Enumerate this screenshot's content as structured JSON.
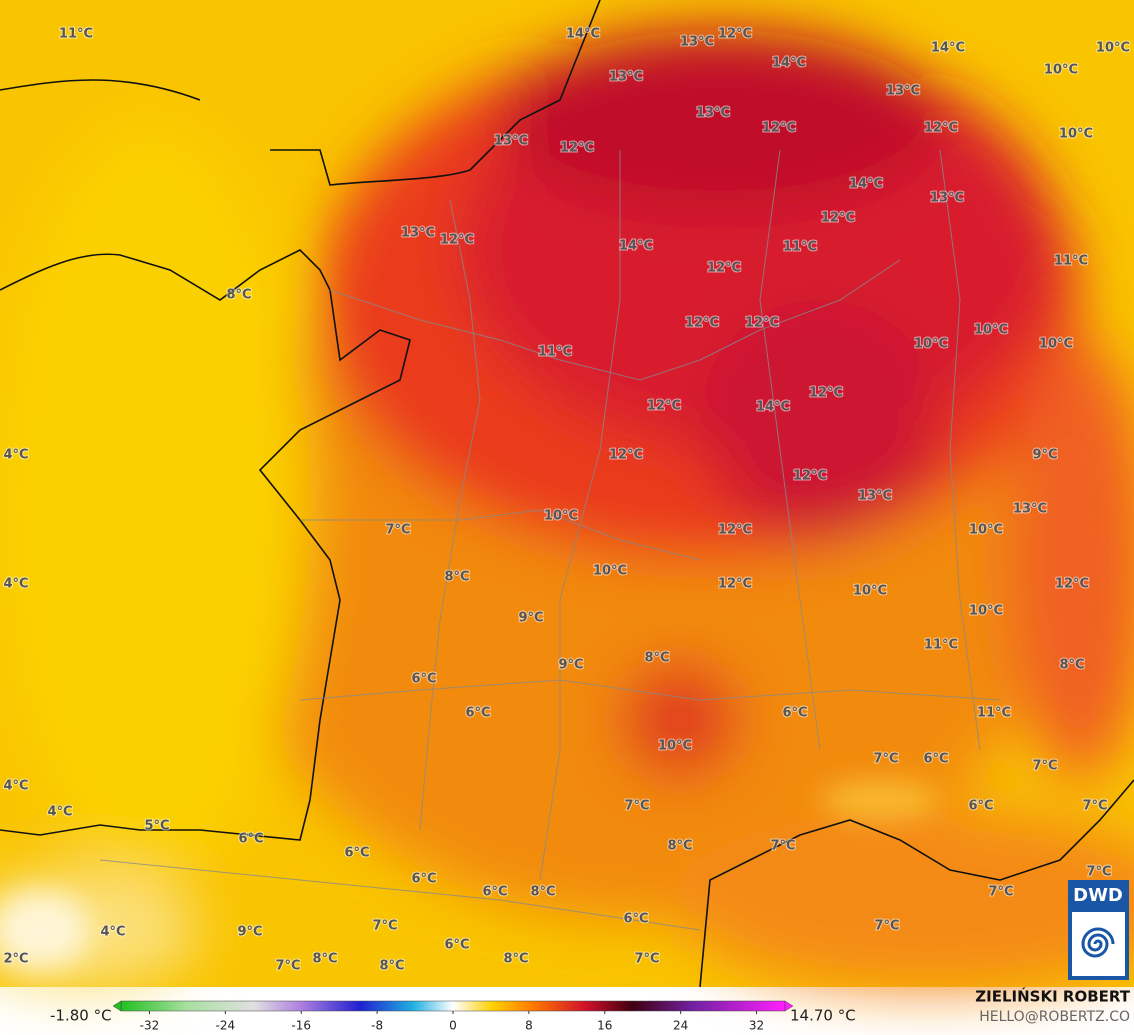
{
  "map": {
    "labels": [
      "11°C",
      "14°C",
      "13°C",
      "12°C",
      "14°C",
      "10°C",
      "13°C",
      "14°C",
      "10°C",
      "13°C",
      "13°C",
      "12°C",
      "12°C",
      "10°C",
      "13°C",
      "12°C",
      "14°C",
      "13°C",
      "12°C",
      "13°C",
      "12°C",
      "14°C",
      "11°C",
      "11°C",
      "12°C",
      "8°C",
      "12°C",
      "12°C",
      "10°C",
      "10°C",
      "10°C",
      "11°C",
      "12°C",
      "14°C",
      "12°C",
      "4°C",
      "12°C",
      "9°C",
      "12°C",
      "13°C",
      "13°C",
      "7°C",
      "10°C",
      "12°C",
      "10°C",
      "4°C",
      "8°C",
      "10°C",
      "12°C",
      "12°C",
      "10°C",
      "10°C",
      "9°C",
      "11°C",
      "9°C",
      "8°C",
      "8°C",
      "6°C",
      "6°C",
      "6°C",
      "11°C",
      "10°C",
      "7°C",
      "6°C",
      "7°C",
      "4°C",
      "4°C",
      "5°C",
      "7°C",
      "6°C",
      "7°C",
      "6°C",
      "6°C",
      "8°C",
      "7°C",
      "6°C",
      "6°C",
      "8°C",
      "7°C",
      "7°C",
      "6°C",
      "4°C",
      "9°C",
      "7°C",
      "6°C",
      "7°C",
      "2°C",
      "7°C",
      "8°C",
      "8°C",
      "8°C",
      "7°C"
    ]
  },
  "colorbar": {
    "min_label": "-1.80 °C",
    "max_label": "14.70 °C",
    "lim": [
      -35,
      35
    ],
    "ticks": [
      -32,
      -24,
      -16,
      -8,
      0,
      8,
      16,
      24,
      32
    ]
  },
  "credits": {
    "author": "ZIELIŃSKI ROBERT",
    "email": "HELLO@ROBERTZ.CO",
    "logo": "DWD"
  }
}
